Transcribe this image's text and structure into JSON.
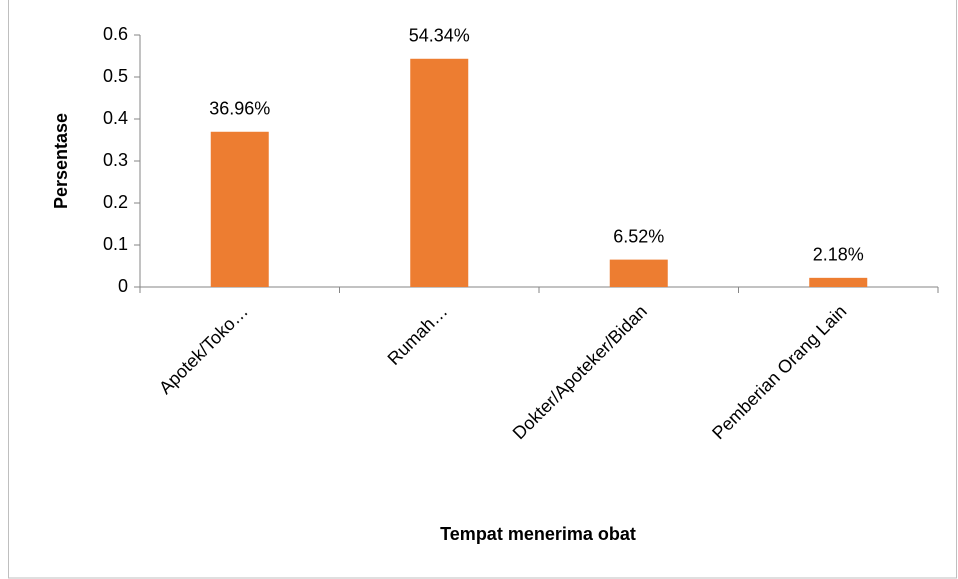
{
  "chart_data": {
    "type": "bar",
    "categories": [
      "Apotek/Toko…",
      "Rumah…",
      "Dokter/Apoteker/Bidan",
      "Pemberian Orang Lain"
    ],
    "values": [
      0.3696,
      0.5434,
      0.0652,
      0.0218
    ],
    "value_labels": [
      "36.96%",
      "54.34%",
      "6.52%",
      "2.18%"
    ],
    "color": "#ed7d31",
    "y_label": "Persentase",
    "x_label": "Tempat menerima obat",
    "ylim": [
      0,
      0.6
    ],
    "yticks": [
      0,
      0.1,
      0.2,
      0.3,
      0.4,
      0.5,
      0.6
    ],
    "grid": false
  }
}
